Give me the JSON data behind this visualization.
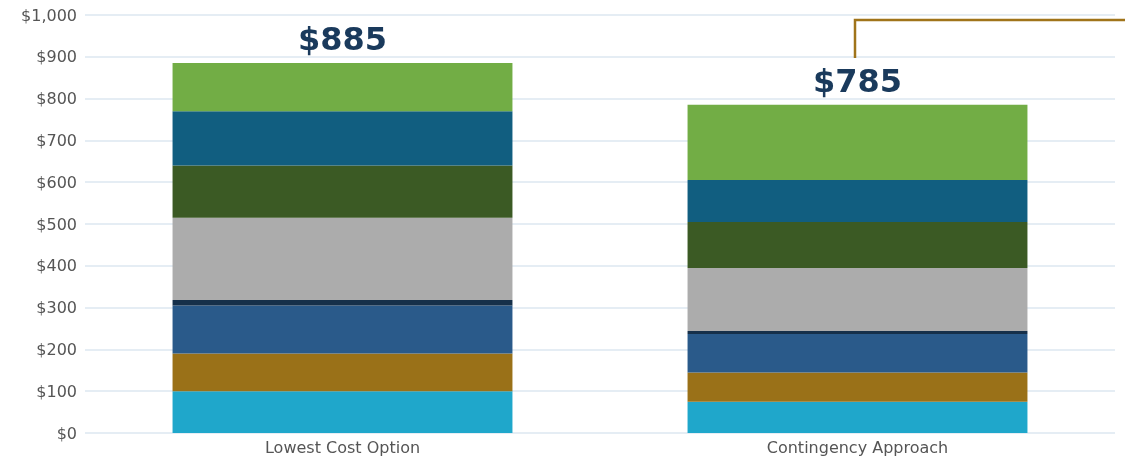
{
  "chart_data": {
    "type": "bar",
    "stacked": true,
    "categories": [
      "Lowest Cost Option",
      "Contingency Approach"
    ],
    "series": [
      {
        "color": "#1fa7cb",
        "values": [
          100,
          75
        ]
      },
      {
        "color": "#9a7118",
        "values": [
          90,
          70
        ]
      },
      {
        "color": "#2a5a8a",
        "values": [
          115,
          92
        ]
      },
      {
        "color": "#16304a",
        "values": [
          13,
          7
        ]
      },
      {
        "color": "#acacac",
        "values": [
          197,
          151
        ]
      },
      {
        "color": "#3b5a24",
        "values": [
          125,
          110
        ]
      },
      {
        "color": "#115e80",
        "values": [
          130,
          100
        ]
      },
      {
        "color": "#72ad45",
        "values": [
          115,
          180
        ]
      }
    ],
    "totals": [
      "$885",
      "$785"
    ],
    "ylim": [
      0,
      1000
    ],
    "yticks": [
      {
        "value": 0,
        "label": "$0"
      },
      {
        "value": 100,
        "label": "$100"
      },
      {
        "value": 200,
        "label": "$200"
      },
      {
        "value": 300,
        "label": "$300"
      },
      {
        "value": 400,
        "label": "$400"
      },
      {
        "value": 500,
        "label": "$500"
      },
      {
        "value": 600,
        "label": "$600"
      },
      {
        "value": 700,
        "label": "$700"
      },
      {
        "value": 800,
        "label": "$800"
      },
      {
        "value": 900,
        "label": "$900"
      },
      {
        "value": 1000,
        "label": "$1,000"
      }
    ],
    "grid": "y"
  }
}
